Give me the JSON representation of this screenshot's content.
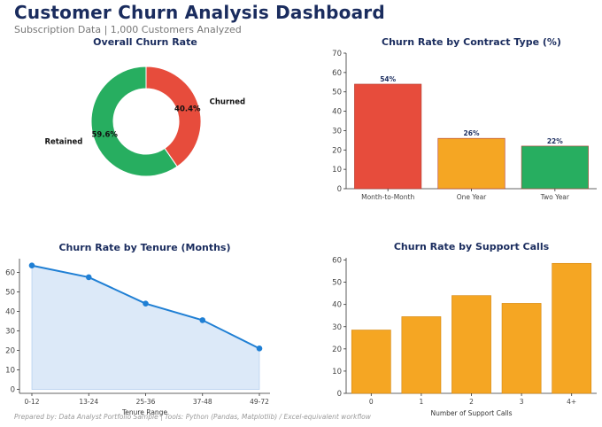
{
  "header": {
    "title": "Customer Churn Analysis Dashboard",
    "subtitle": "Subscription Data  |  1,000 Customers Analyzed"
  },
  "footer": {
    "text": "Prepared by: Data Analyst Portfolio Sample  |  Tools: Python (Pandas, Matplotlib) / Excel-equivalent workflow"
  },
  "chart_data": [
    {
      "type": "pie",
      "style": "donut",
      "title": "Overall Churn Rate",
      "slices": [
        {
          "label": "Churned",
          "value": 40.4,
          "pct_label": "40.4%",
          "color": "#e74c3c"
        },
        {
          "label": "Retained",
          "value": 59.6,
          "pct_label": "59.6%",
          "color": "#27ae60"
        }
      ]
    },
    {
      "type": "bar",
      "title": "Churn Rate by Contract Type (%)",
      "categories": [
        "Month-to-Month",
        "One Year",
        "Two Year"
      ],
      "values": [
        54,
        26,
        22
      ],
      "data_labels": [
        "54%",
        "26%",
        "22%"
      ],
      "colors": [
        "#e74c3c",
        "#f5a623",
        "#27ae60"
      ],
      "ylim": [
        0,
        70
      ],
      "yticks": [
        0,
        10,
        20,
        30,
        40,
        50,
        60,
        70
      ],
      "xlabel": "",
      "ylabel": ""
    },
    {
      "type": "area",
      "title": "Churn Rate by Tenure (Months)",
      "categories": [
        "0-12",
        "13-24",
        "25-36",
        "37-48",
        "49-72"
      ],
      "values": [
        63.5,
        57.5,
        44,
        35.5,
        21
      ],
      "ylim": [
        -2,
        67
      ],
      "yticks": [
        0,
        10,
        20,
        30,
        40,
        50,
        60
      ],
      "xlabel": "Tenure Range",
      "ylabel": "",
      "line_color": "#1f7fd4",
      "fill_color": "#dce9f8"
    },
    {
      "type": "bar",
      "title": "Churn Rate by Support Calls",
      "categories": [
        "0",
        "1",
        "2",
        "3",
        "4+"
      ],
      "values": [
        28.5,
        34.5,
        44,
        40.5,
        58.5
      ],
      "colors": [
        "#f5a623",
        "#f5a623",
        "#f5a623",
        "#f5a623",
        "#f5a623"
      ],
      "ylim": [
        0,
        61
      ],
      "yticks": [
        0,
        10,
        20,
        30,
        40,
        50,
        60
      ],
      "xlabel": "Number of Support Calls",
      "ylabel": ""
    }
  ]
}
